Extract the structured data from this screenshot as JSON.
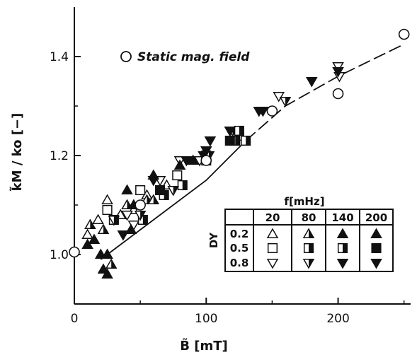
{
  "chart_data": {
    "type": "scatter",
    "title": "",
    "xlabel": "B̃ [mT]",
    "ylabel": "k̃M / ko [−]",
    "xlim": [
      0,
      255
    ],
    "ylim": [
      0.9,
      1.5
    ],
    "x_ticks": [
      0,
      100,
      200
    ],
    "y_ticks": [
      1.0,
      1.2,
      1.4
    ],
    "grid": false,
    "legend": {
      "placement": "top-left",
      "label": "Static mag. field"
    },
    "static_series": {
      "name": "Static mag. field",
      "marker": "circle-open",
      "x": [
        0,
        50,
        100,
        150,
        200,
        250
      ],
      "y": [
        1.005,
        1.1,
        1.19,
        1.29,
        1.325,
        1.445
      ]
    },
    "fit_line": {
      "segments": [
        [
          [
            20,
            0.99
          ],
          [
            60,
            1.07
          ],
          [
            100,
            1.15
          ],
          [
            130,
            1.23
          ]
        ],
        [
          [
            130,
            1.23
          ],
          [
            160,
            1.3
          ],
          [
            200,
            1.36
          ],
          [
            250,
            1.425
          ]
        ]
      ],
      "dashed_segment_index": 1
    },
    "inset_table": {
      "freq_header": "f[mHz]",
      "dy_label": "DY",
      "freqs": [
        "20",
        "80",
        "140",
        "200"
      ],
      "dy_values": [
        "0.2",
        "0.5",
        "0.8"
      ]
    },
    "series": [
      {
        "f": "20",
        "dy": "0.2",
        "marker": "triangle-up-open",
        "x": [
          10,
          18,
          25,
          35,
          45,
          55,
          70
        ],
        "y": [
          1.04,
          1.07,
          1.11,
          1.08,
          1.09,
          1.12,
          1.14
        ]
      },
      {
        "f": "20",
        "dy": "0.5",
        "marker": "square-open",
        "x": [
          25,
          50,
          78,
          100,
          125
        ],
        "y": [
          1.09,
          1.13,
          1.16,
          1.2,
          1.24
        ]
      },
      {
        "f": "20",
        "dy": "0.8",
        "marker": "triangle-down-open",
        "x": [
          30,
          40,
          45,
          65,
          80,
          95,
          155,
          200,
          201
        ],
        "y": [
          1.07,
          1.08,
          1.06,
          1.15,
          1.19,
          1.19,
          1.32,
          1.38,
          1.36
        ]
      },
      {
        "f": "80",
        "dy": "0.2",
        "marker": "triangle-up-half",
        "x": [
          12,
          22,
          28,
          40,
          55,
          60
        ],
        "y": [
          1.06,
          1.05,
          0.98,
          1.1,
          1.11,
          1.11
        ]
      },
      {
        "f": "80",
        "dy": "0.5",
        "marker": "square-half",
        "x": [
          30,
          52,
          82,
          100,
          122,
          130
        ],
        "y": [
          1.07,
          1.07,
          1.14,
          1.19,
          1.23,
          1.23
        ]
      },
      {
        "f": "80",
        "dy": "0.8",
        "marker": "triangle-down-half",
        "x": [
          30,
          37,
          50,
          75,
          102,
          120,
          160
        ],
        "y": [
          1.07,
          1.04,
          1.08,
          1.13,
          1.2,
          1.25,
          1.31
        ]
      },
      {
        "f": "140",
        "dy": "0.2",
        "marker": "triangle-up-filled",
        "x": [
          10,
          15,
          20,
          22,
          25,
          45
        ],
        "y": [
          1.02,
          1.03,
          1.0,
          0.97,
          1.0,
          1.1
        ]
      },
      {
        "f": "140",
        "dy": "0.5",
        "marker": "square-half",
        "x": [
          68,
          125
        ],
        "y": [
          1.12,
          1.25
        ]
      },
      {
        "f": "140",
        "dy": "0.8",
        "marker": "triangle-down-filled",
        "x": [
          37,
          60,
          85,
          98,
          143
        ],
        "y": [
          1.04,
          1.15,
          1.19,
          1.2,
          1.29
        ]
      },
      {
        "f": "200",
        "dy": "0.2",
        "marker": "triangle-up-filled",
        "x": [
          25,
          40,
          43,
          60,
          80,
          90
        ],
        "y": [
          0.96,
          1.13,
          1.05,
          1.16,
          1.18,
          1.19
        ]
      },
      {
        "f": "200",
        "dy": "0.5",
        "marker": "square-filled",
        "x": [
          65,
          118
        ],
        "y": [
          1.13,
          1.23
        ]
      },
      {
        "f": "200",
        "dy": "0.8",
        "marker": "triangle-down-filled",
        "x": [
          100,
          103,
          118,
          140,
          180,
          200
        ],
        "y": [
          1.21,
          1.23,
          1.25,
          1.29,
          1.35,
          1.37
        ]
      }
    ]
  }
}
